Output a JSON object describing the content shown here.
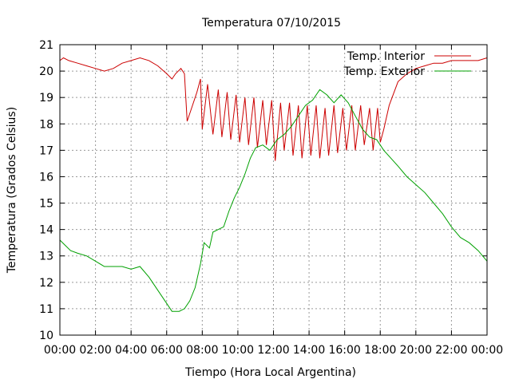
{
  "chart_data": {
    "type": "line",
    "title": "Temperatura 07/10/2015",
    "xlabel": "Tiempo (Hora Local Argentina)",
    "ylabel": "Temperatura (Grados Celsius)",
    "xlim": [
      0,
      24
    ],
    "ylim": [
      10,
      21
    ],
    "x_ticks": [
      0,
      2,
      4,
      6,
      8,
      10,
      12,
      14,
      16,
      18,
      20,
      22,
      24
    ],
    "x_tick_labels": [
      "00:00",
      "02:00",
      "04:00",
      "06:00",
      "08:00",
      "10:00",
      "12:00",
      "14:00",
      "16:00",
      "18:00",
      "20:00",
      "22:00",
      "00:00"
    ],
    "y_ticks": [
      10,
      11,
      12,
      13,
      14,
      15,
      16,
      17,
      18,
      19,
      20,
      21
    ],
    "y_tick_labels": [
      "10",
      "11",
      "12",
      "13",
      "14",
      "15",
      "16",
      "17",
      "18",
      "19",
      "20",
      "21"
    ],
    "grid": true,
    "legend_position": "top-right",
    "series": [
      {
        "name": "Temp. Interior",
        "color": "#cc0000",
        "points": [
          [
            0.0,
            20.4
          ],
          [
            0.2,
            20.5
          ],
          [
            0.5,
            20.4
          ],
          [
            1.0,
            20.3
          ],
          [
            1.5,
            20.2
          ],
          [
            2.0,
            20.1
          ],
          [
            2.5,
            20.0
          ],
          [
            3.0,
            20.1
          ],
          [
            3.5,
            20.3
          ],
          [
            4.0,
            20.4
          ],
          [
            4.5,
            20.5
          ],
          [
            5.0,
            20.4
          ],
          [
            5.5,
            20.2
          ],
          [
            6.0,
            19.9
          ],
          [
            6.3,
            19.7
          ],
          [
            6.5,
            19.9
          ],
          [
            6.8,
            20.1
          ],
          [
            7.0,
            19.9
          ],
          [
            7.15,
            18.1
          ],
          [
            7.4,
            18.6
          ],
          [
            7.7,
            19.2
          ],
          [
            7.9,
            19.7
          ],
          [
            8.0,
            17.8
          ],
          [
            8.3,
            19.5
          ],
          [
            8.6,
            17.6
          ],
          [
            8.9,
            19.3
          ],
          [
            9.1,
            17.5
          ],
          [
            9.4,
            19.2
          ],
          [
            9.6,
            17.4
          ],
          [
            9.9,
            19.1
          ],
          [
            10.1,
            17.3
          ],
          [
            10.4,
            19.0
          ],
          [
            10.6,
            17.2
          ],
          [
            10.9,
            19.0
          ],
          [
            11.1,
            17.1
          ],
          [
            11.4,
            18.9
          ],
          [
            11.6,
            17.2
          ],
          [
            11.9,
            18.9
          ],
          [
            12.1,
            16.6
          ],
          [
            12.4,
            18.8
          ],
          [
            12.6,
            17.0
          ],
          [
            12.9,
            18.8
          ],
          [
            13.1,
            16.8
          ],
          [
            13.4,
            18.7
          ],
          [
            13.6,
            16.7
          ],
          [
            13.9,
            18.7
          ],
          [
            14.1,
            16.8
          ],
          [
            14.4,
            18.7
          ],
          [
            14.6,
            16.7
          ],
          [
            14.9,
            18.6
          ],
          [
            15.1,
            16.8
          ],
          [
            15.4,
            18.7
          ],
          [
            15.6,
            16.9
          ],
          [
            15.9,
            18.6
          ],
          [
            16.1,
            17.0
          ],
          [
            16.4,
            18.7
          ],
          [
            16.6,
            17.0
          ],
          [
            16.9,
            18.7
          ],
          [
            17.1,
            17.2
          ],
          [
            17.4,
            18.6
          ],
          [
            17.6,
            17.0
          ],
          [
            17.85,
            18.6
          ],
          [
            18.0,
            17.3
          ],
          [
            18.2,
            17.8
          ],
          [
            18.5,
            18.7
          ],
          [
            19.0,
            19.6
          ],
          [
            19.5,
            19.9
          ],
          [
            20.0,
            20.1
          ],
          [
            20.5,
            20.2
          ],
          [
            21.0,
            20.3
          ],
          [
            21.5,
            20.3
          ],
          [
            22.0,
            20.4
          ],
          [
            22.5,
            20.4
          ],
          [
            23.0,
            20.4
          ],
          [
            23.5,
            20.4
          ],
          [
            24.0,
            20.5
          ]
        ]
      },
      {
        "name": "Temp. Exterior",
        "color": "#00a000",
        "points": [
          [
            0.0,
            13.6
          ],
          [
            0.3,
            13.4
          ],
          [
            0.6,
            13.2
          ],
          [
            1.0,
            13.1
          ],
          [
            1.5,
            13.0
          ],
          [
            2.0,
            12.8
          ],
          [
            2.5,
            12.6
          ],
          [
            3.0,
            12.6
          ],
          [
            3.5,
            12.6
          ],
          [
            4.0,
            12.5
          ],
          [
            4.5,
            12.6
          ],
          [
            5.0,
            12.2
          ],
          [
            5.5,
            11.7
          ],
          [
            6.0,
            11.2
          ],
          [
            6.3,
            10.9
          ],
          [
            6.7,
            10.9
          ],
          [
            7.0,
            11.0
          ],
          [
            7.3,
            11.3
          ],
          [
            7.6,
            11.8
          ],
          [
            7.9,
            12.7
          ],
          [
            8.1,
            13.5
          ],
          [
            8.4,
            13.3
          ],
          [
            8.6,
            13.9
          ],
          [
            8.9,
            14.0
          ],
          [
            9.2,
            14.1
          ],
          [
            9.5,
            14.7
          ],
          [
            9.8,
            15.2
          ],
          [
            10.1,
            15.6
          ],
          [
            10.4,
            16.1
          ],
          [
            10.7,
            16.7
          ],
          [
            11.0,
            17.1
          ],
          [
            11.4,
            17.2
          ],
          [
            11.8,
            17.0
          ],
          [
            12.2,
            17.4
          ],
          [
            12.6,
            17.6
          ],
          [
            13.0,
            17.9
          ],
          [
            13.4,
            18.3
          ],
          [
            13.8,
            18.7
          ],
          [
            14.2,
            18.9
          ],
          [
            14.6,
            19.3
          ],
          [
            15.0,
            19.1
          ],
          [
            15.4,
            18.8
          ],
          [
            15.8,
            19.1
          ],
          [
            16.2,
            18.8
          ],
          [
            16.6,
            18.3
          ],
          [
            17.0,
            17.8
          ],
          [
            17.4,
            17.5
          ],
          [
            17.8,
            17.4
          ],
          [
            18.2,
            17.0
          ],
          [
            18.6,
            16.7
          ],
          [
            19.0,
            16.4
          ],
          [
            19.5,
            16.0
          ],
          [
            20.0,
            15.7
          ],
          [
            20.5,
            15.4
          ],
          [
            21.0,
            15.0
          ],
          [
            21.5,
            14.6
          ],
          [
            22.0,
            14.1
          ],
          [
            22.5,
            13.7
          ],
          [
            23.0,
            13.5
          ],
          [
            23.5,
            13.2
          ],
          [
            24.0,
            12.8
          ]
        ]
      }
    ]
  }
}
